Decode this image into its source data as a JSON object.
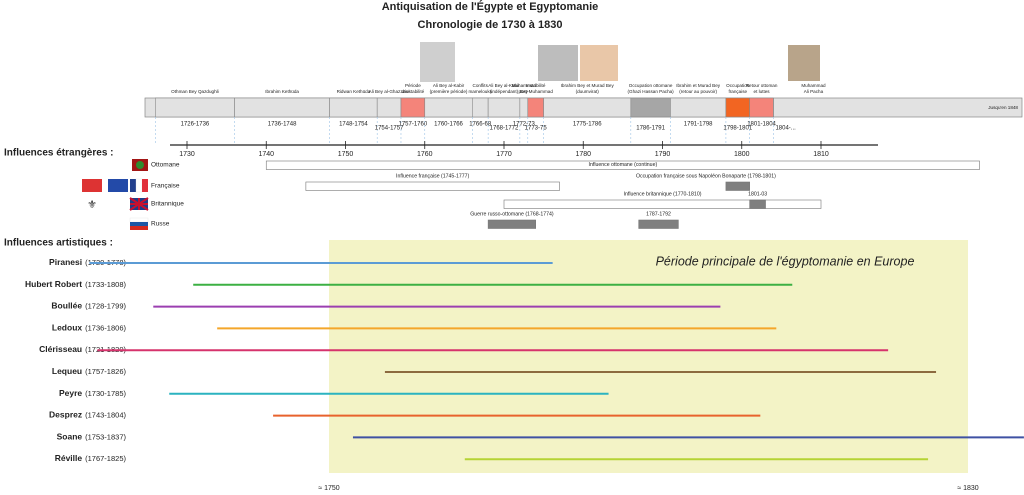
{
  "header": {
    "title": "Antiquisation de l'Égypte et Egyptomanie",
    "subtitle": "Chronologie de 1730 à 1830"
  },
  "axis": {
    "ticks": [
      1730,
      1740,
      1750,
      1760,
      1770,
      1780,
      1790,
      1800,
      1810
    ]
  },
  "periods": [
    {
      "label": [
        "Othman Bey Qazdughli"
      ],
      "range": "1726-1736",
      "start": 1726,
      "end": 1736,
      "color": "#e2e2e2"
    },
    {
      "label": [
        "Ibrahim Kethüda"
      ],
      "range": "1736-1748",
      "start": 1736,
      "end": 1748,
      "color": "#e2e2e2"
    },
    {
      "label": [
        "Ridwan Kethüda"
      ],
      "range": "1748-1754",
      "start": 1748,
      "end": 1754,
      "color": "#e2e2e2"
    },
    {
      "label": [
        "Ali Bey al-Ghazzawi"
      ],
      "range": "1754-1757",
      "start": 1754,
      "end": 1757,
      "color": "#e2e2e2"
    },
    {
      "label": [
        "Période",
        "d'instabilité"
      ],
      "range": "1757-1760",
      "start": 1757,
      "end": 1760,
      "color": "#f4847a"
    },
    {
      "label": [
        "Ali Bey al-Kabir",
        "(première période)"
      ],
      "range": "1760-1766",
      "start": 1760,
      "end": 1766,
      "color": "#e2e2e2"
    },
    {
      "label": [
        "Conflits",
        "mamelouks"
      ],
      "range": "1766-68",
      "start": 1766,
      "end": 1768,
      "color": "#e2e2e2"
    },
    {
      "label": [
        "Ali Bey al-Kabir",
        "(indépendant)"
      ],
      "range": "1768-1772",
      "start": 1768,
      "end": 1772,
      "color": "#e2e2e2"
    },
    {
      "label": [
        "Muhammad",
        "Bey"
      ],
      "range": "1772-73",
      "start": 1772,
      "end": 1773,
      "color": "#e2e2e2"
    },
    {
      "label": [
        "Instabilité",
        "post-Muhammad"
      ],
      "range": "1773-75",
      "start": 1773,
      "end": 1775,
      "color": "#f4847a"
    },
    {
      "label": [
        "Ibrahim Bey et Murad Bey",
        "(duumvirat)"
      ],
      "range": "1775-1786",
      "start": 1775,
      "end": 1786,
      "color": "#e2e2e2"
    },
    {
      "label": [
        "Occupation ottomane",
        "(Ghazi Hassan Pacha)"
      ],
      "range": "1786-1791",
      "start": 1786,
      "end": 1791,
      "color": "#a6a6a6"
    },
    {
      "label": [
        "Ibrahim et Murad Bey",
        "(retour au pouvoir)"
      ],
      "range": "1791-1798",
      "start": 1791,
      "end": 1798,
      "color": "#e2e2e2"
    },
    {
      "label": [
        "Occupation",
        "française"
      ],
      "range": "1798-1801",
      "start": 1798,
      "end": 1801,
      "color": "#f26522"
    },
    {
      "label": [
        "Retour ottoman",
        "et luttes"
      ],
      "range": "1801-1804",
      "start": 1801,
      "end": 1804,
      "color": "#f4847a"
    },
    {
      "label": [
        "Muhammad",
        "Ali Pacha"
      ],
      "range": "1804-...",
      "start": 1804,
      "end": null,
      "color": "#e2e2e2"
    }
  ],
  "until": "Jusqu'en 1848",
  "foreign": {
    "title": "Influences étrangères :",
    "rows": [
      {
        "name": "Ottomane",
        "bars": [
          {
            "label": "Influence ottomane (continue)",
            "start": 1740,
            "end": 1830,
            "dark": false
          }
        ]
      },
      {
        "name": "Française",
        "bars": [
          {
            "label": "Influence française (1745-1777)",
            "start": 1745,
            "end": 1777,
            "dark": false
          },
          {
            "label": "Occupation française sous Napoléon Bonaparte (1798-1801)",
            "start": 1798,
            "end": 1801,
            "dark": true
          }
        ]
      },
      {
        "name": "Britannique",
        "bars": [
          {
            "label": "Influence britannique (1770-1810)",
            "start": 1770,
            "end": 1810,
            "dark": false
          },
          {
            "label": "1801-03",
            "start": 1801,
            "end": 1803,
            "dark": true
          }
        ]
      },
      {
        "name": "Russe",
        "bars": [
          {
            "label": "Guerre russo-ottomane (1768-1774)",
            "start": 1768,
            "end": 1774,
            "dark": true
          },
          {
            "label": "1787-1792",
            "start": 1787,
            "end": 1792,
            "dark": true
          }
        ]
      }
    ]
  },
  "artistic": {
    "title": "Influences artistiques :",
    "main_period": {
      "label": "Période principale de l'égyptomanie en Europe",
      "start": 1750,
      "end": 1830,
      "start_label": "≈ 1750",
      "end_label": "≈ 1830"
    },
    "artists": [
      {
        "name": "Piranesi",
        "dates": "(1720-1778)",
        "start": 1720,
        "end": 1778,
        "color": "#5b9bd5"
      },
      {
        "name": "Hubert Robert",
        "dates": "(1733-1808)",
        "start": 1733,
        "end": 1808,
        "color": "#3cb043"
      },
      {
        "name": "Boullée",
        "dates": "(1728-1799)",
        "start": 1728,
        "end": 1799,
        "color": "#9b3fb0"
      },
      {
        "name": "Ledoux",
        "dates": "(1736-1806)",
        "start": 1736,
        "end": 1806,
        "color": "#f4a62a"
      },
      {
        "name": "Clérisseau",
        "dates": "(1721-1820)",
        "start": 1721,
        "end": 1820,
        "color": "#d6336c"
      },
      {
        "name": "Lequeu",
        "dates": "(1757-1826)",
        "start": 1757,
        "end": 1826,
        "color": "#8c6a3f"
      },
      {
        "name": "Peyre",
        "dates": "(1730-1785)",
        "start": 1730,
        "end": 1785,
        "color": "#2bb3c0"
      },
      {
        "name": "Desprez",
        "dates": "(1743-1804)",
        "start": 1743,
        "end": 1804,
        "color": "#e8622c"
      },
      {
        "name": "Soane",
        "dates": "(1753-1837)",
        "start": 1753,
        "end": 1837,
        "color": "#3f51a3"
      },
      {
        "name": "Réville",
        "dates": "(1767-1825)",
        "start": 1767,
        "end": 1825,
        "color": "#b5d334"
      }
    ]
  }
}
